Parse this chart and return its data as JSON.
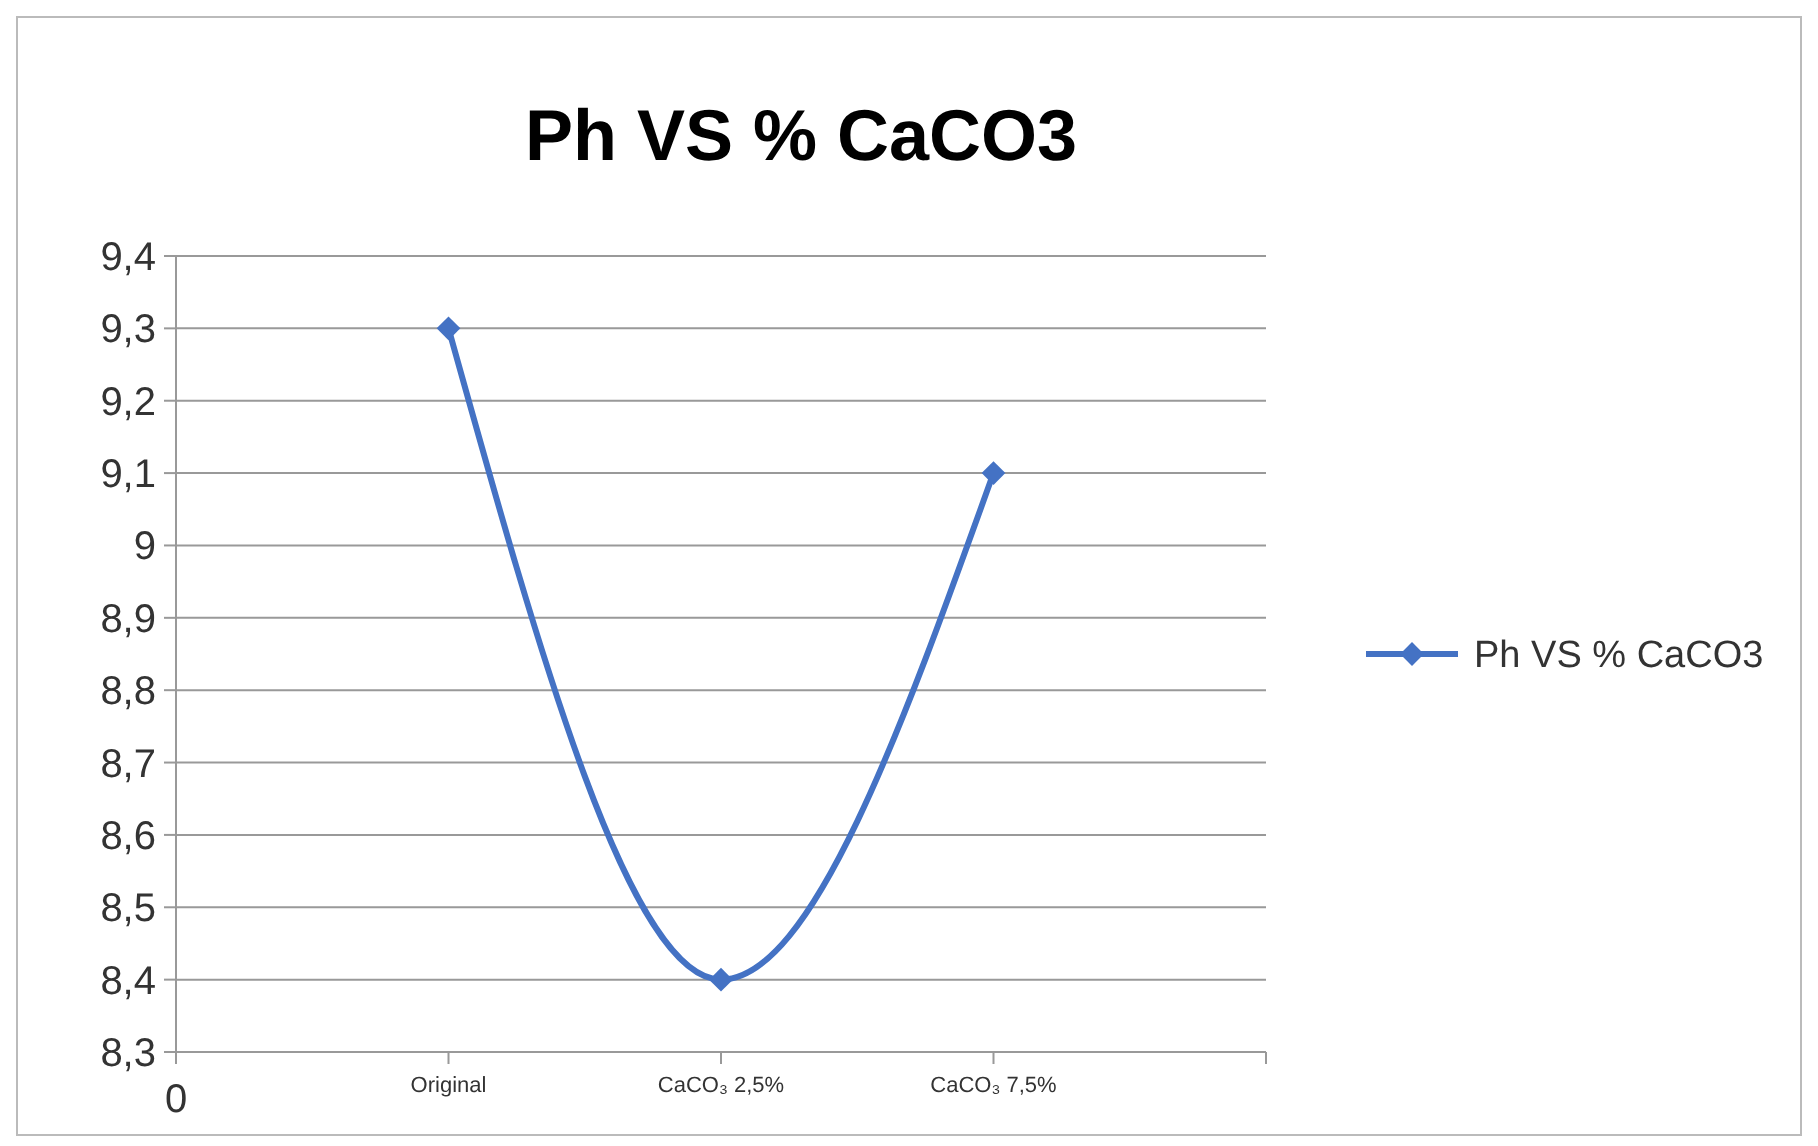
{
  "chart_data": {
    "type": "line",
    "title": "Ph VS % CaCO3",
    "categories": [
      "0",
      "Original",
      "CaCO₃ 2,5%",
      "CaCO₃ 7,5%",
      null
    ],
    "series": [
      {
        "name": "Ph VS % CaCO3",
        "color": "#4472c4",
        "values": [
          null,
          9.3,
          8.4,
          9.1,
          null
        ]
      }
    ],
    "ylim": [
      8.3,
      9.4
    ],
    "yticks": [
      {
        "value": 8.3,
        "label": "8,3"
      },
      {
        "value": 8.4,
        "label": "8,4"
      },
      {
        "value": 8.5,
        "label": "8,5"
      },
      {
        "value": 8.6,
        "label": "8,6"
      },
      {
        "value": 8.7,
        "label": "8,7"
      },
      {
        "value": 8.8,
        "label": "8,8"
      },
      {
        "value": 8.9,
        "label": "8,9"
      },
      9,
      {
        "value": 9.1,
        "label": "9,1"
      },
      {
        "value": 9.2,
        "label": "9,2"
      },
      {
        "value": 9.3,
        "label": "9,3"
      },
      {
        "value": 9.4,
        "label": "9,4"
      }
    ],
    "grid": "y",
    "legend": "right",
    "marker": "diamond",
    "line_style": "solid"
  }
}
